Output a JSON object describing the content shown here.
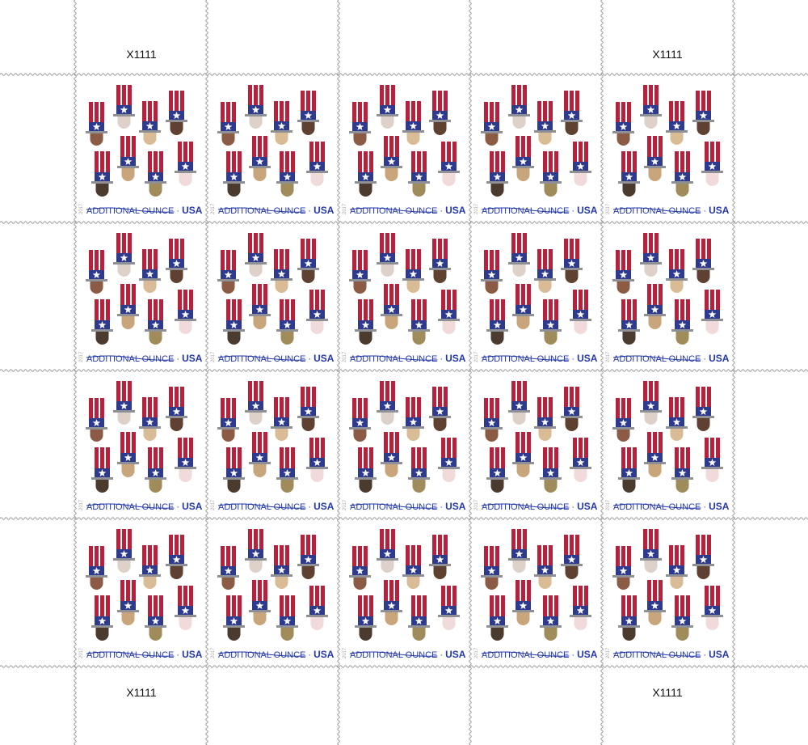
{
  "sheet": {
    "plate_number": "X1111",
    "rows": 4,
    "columns": 5,
    "stamp": {
      "denomination_text": "ADDITIONAL OUNCE",
      "separator": "·",
      "country": "USA",
      "year": "2017",
      "hat_count": 8
    },
    "colors": {
      "hat_red": "#b8213b",
      "hat_white": "#ffffff",
      "hat_blue": "#2d3a8e",
      "brim_gray": "#8e9095",
      "text_blue": "#2438a8",
      "perforation": "#9a9a9a",
      "faces": [
        "#8c5b45",
        "#ddd1c9",
        "#d9bc96",
        "#5f4131",
        "#4b3b2f",
        "#c9a57b",
        "#a08b5b",
        "#f0dada"
      ]
    }
  }
}
